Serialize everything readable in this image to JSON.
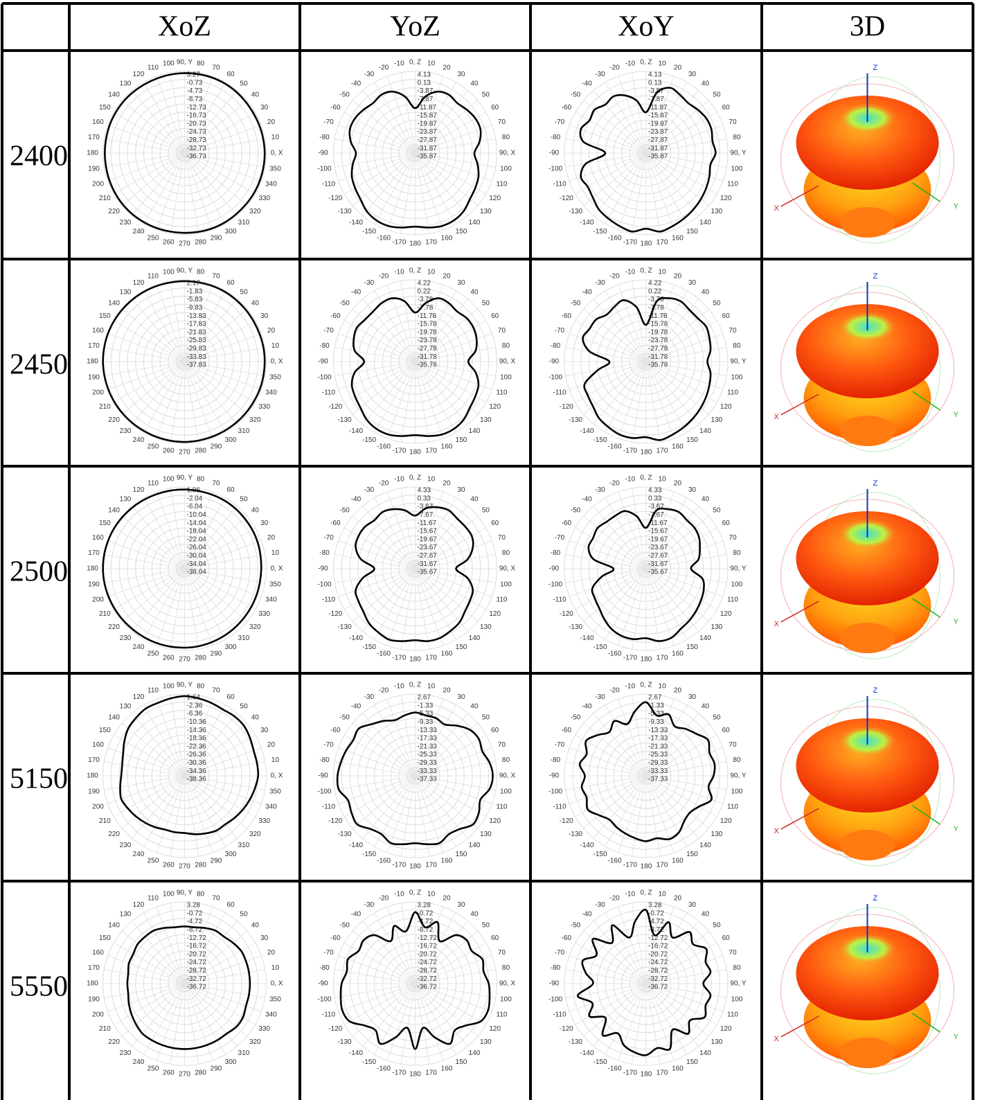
{
  "table": {
    "columns": [
      {
        "title": "XoZ",
        "zero": "right",
        "direction": "ccw",
        "angle_labels": [
          "0, X",
          10,
          20,
          30,
          40,
          50,
          60,
          70,
          80,
          "90, Y",
          100,
          110,
          120,
          130,
          140,
          150,
          160,
          170,
          180,
          190,
          200,
          210,
          220,
          230,
          240,
          250,
          260,
          270,
          280,
          290,
          300,
          310,
          320,
          330,
          340,
          350
        ]
      },
      {
        "title": "YoZ",
        "zero": "top",
        "direction": "cw",
        "angle_labels": [
          "0, Z",
          10,
          20,
          30,
          40,
          50,
          60,
          70,
          80,
          "90, X",
          100,
          110,
          120,
          130,
          140,
          150,
          160,
          170,
          180,
          -170,
          -160,
          -150,
          -140,
          -130,
          -120,
          -110,
          -100,
          -90,
          -80,
          -70,
          -60,
          -50,
          -40,
          -30,
          -20,
          -10
        ]
      },
      {
        "title": "XoY",
        "zero": "top",
        "direction": "cw",
        "angle_labels": [
          "0, Z",
          10,
          20,
          30,
          40,
          50,
          60,
          70,
          80,
          "90, Y",
          100,
          110,
          120,
          130,
          140,
          150,
          160,
          170,
          180,
          -170,
          -160,
          -150,
          -140,
          -130,
          -120,
          -110,
          -100,
          -90,
          -80,
          -70,
          -60,
          -50,
          -40,
          -30,
          -20,
          -10
        ]
      },
      {
        "title": "3D"
      }
    ],
    "axis_labels": {
      "z": "Z",
      "x": "X",
      "y": "Y"
    },
    "rows": [
      {
        "label": "2400",
        "plots": [
          {
            "rticks": [
              3.27,
              -0.73,
              -4.73,
              -8.73,
              -12.73,
              -16.73,
              -20.73,
              -24.73,
              -28.73,
              -32.73,
              -36.73
            ],
            "gain": [
              2.5,
              2.4,
              2.3,
              2.2,
              2.3,
              2.5,
              2.6,
              2.6,
              2.5,
              2.4,
              2.3,
              2.2,
              2.2,
              2.3,
              2.4,
              2.4,
              2.4,
              2.3,
              2.3,
              2.3,
              2.4,
              2.5,
              2.6,
              2.6,
              2.5,
              2.4,
              2.3,
              2.3,
              2.4,
              2.5,
              2.5,
              2.4,
              2.4,
              2.5,
              2.5,
              2.5
            ]
          },
          {
            "rticks": [
              4.13,
              0.13,
              -3.87,
              -7.87,
              -11.87,
              -15.87,
              -19.87,
              -23.87,
              -27.87,
              -31.87,
              -35.87
            ],
            "gain": [
              -13.87,
              -7.87,
              -3.87,
              -2.87,
              -3.87,
              -2.87,
              -1.87,
              -1.87,
              -3.87,
              -6.87,
              -4.87,
              -2.87,
              -1.87,
              -0.87,
              1.13,
              2.13,
              2.13,
              1.13,
              0.13,
              1.13,
              2.13,
              2.13,
              1.13,
              -0.87,
              -1.87,
              -2.87,
              -4.87,
              -6.87,
              -3.87,
              -1.87,
              -1.87,
              -2.87,
              -3.87,
              -2.87,
              -3.87,
              -7.87
            ]
          },
          {
            "rticks": [
              4.13,
              0.13,
              -3.87,
              -7.87,
              -11.87,
              -15.87,
              -19.87,
              -23.87,
              -27.87,
              -31.87,
              -35.87
            ],
            "gain": [
              -15.87,
              -5.87,
              -1.87,
              -2.87,
              -3.87,
              -2.87,
              -1.87,
              -1.87,
              -2.87,
              -1.87,
              -3.87,
              -2.87,
              -1.87,
              -0.87,
              0.13,
              1.13,
              2.13,
              3.13,
              1.13,
              3.13,
              2.13,
              1.13,
              0.13,
              -1.87,
              -2.87,
              -1.87,
              -5.87,
              -15.87,
              -4.87,
              -1.87,
              -3.87,
              -2.87,
              -4.87,
              -3.87,
              -5.87,
              -9.87
            ]
          }
        ]
      },
      {
        "label": "2450",
        "plots": [
          {
            "rticks": [
              2.17,
              -1.83,
              -5.83,
              -9.83,
              -13.83,
              -17.83,
              -21.83,
              -25.83,
              -29.83,
              -33.83,
              -37.83
            ],
            "gain": [
              1.4,
              1.4,
              1.3,
              1.3,
              1.4,
              1.5,
              1.6,
              1.6,
              1.5,
              1.5,
              1.5,
              1.6,
              1.7,
              1.8,
              1.9,
              2.0,
              2.1,
              2.1,
              2.1,
              2.0,
              1.9,
              1.8,
              1.7,
              1.6,
              1.5,
              1.5,
              1.5,
              1.5,
              1.4,
              1.3,
              1.3,
              1.3,
              1.3,
              1.3,
              1.4,
              1.4
            ]
          },
          {
            "rticks": [
              4.22,
              0.22,
              -3.78,
              -7.78,
              -11.78,
              -15.78,
              -19.78,
              -23.78,
              -27.78,
              -31.78,
              -35.78
            ],
            "gain": [
              -11.78,
              -6.78,
              -2.78,
              -2.78,
              -3.78,
              -2.78,
              -2.78,
              -3.78,
              -5.78,
              -9.78,
              -5.78,
              -2.78,
              -1.78,
              -0.78,
              1.22,
              2.22,
              2.22,
              1.22,
              0.22,
              1.22,
              2.22,
              2.22,
              1.22,
              -0.78,
              -1.78,
              -2.78,
              -5.78,
              -10.78,
              -5.78,
              -3.78,
              -2.78,
              -3.78,
              -3.78,
              -2.78,
              -2.78,
              -5.78
            ]
          },
          {
            "rticks": [
              4.22,
              0.22,
              -3.78,
              -7.78,
              -11.78,
              -15.78,
              -19.78,
              -23.78,
              -27.78,
              -31.78,
              -35.78
            ],
            "gain": [
              -17.78,
              -5.78,
              -2.78,
              -1.78,
              -2.78,
              -2.78,
              -1.78,
              -2.78,
              -3.78,
              -5.78,
              -3.78,
              -2.78,
              -1.78,
              -0.78,
              0.22,
              1.22,
              2.22,
              3.22,
              1.22,
              2.22,
              2.22,
              1.22,
              0.22,
              -1.78,
              -2.78,
              -3.78,
              -11.78,
              -17.78,
              -7.78,
              -2.78,
              -3.78,
              -3.78,
              -5.78,
              -4.78,
              -3.78,
              -8.78
            ]
          }
        ]
      },
      {
        "label": "2500",
        "plots": [
          {
            "rticks": [
              1.96,
              -2.04,
              -6.04,
              -10.04,
              -14.04,
              -18.04,
              -22.04,
              -26.04,
              -30.04,
              -34.04,
              -38.04
            ],
            "gain": [
              -0.5,
              -0.3,
              0,
              0.2,
              0.3,
              0.5,
              0.6,
              0.6,
              0.6,
              0.7,
              0.8,
              0.9,
              1.1,
              1.3,
              1.5,
              1.7,
              1.8,
              1.9,
              1.9,
              1.8,
              1.6,
              1.4,
              1.2,
              1.0,
              0.9,
              0.8,
              0.7,
              0.6,
              0.5,
              0.3,
              0.1,
              -0.1,
              -0.3,
              -0.4,
              -0.5,
              -0.6
            ]
          },
          {
            "rticks": [
              4.33,
              0.33,
              -3.67,
              -7.67,
              -11.67,
              -15.67,
              -19.67,
              -23.67,
              -27.67,
              -31.67,
              -35.67
            ],
            "gain": [
              -9.67,
              -5.67,
              -3.67,
              -2.67,
              -3.67,
              -3.67,
              -3.67,
              -5.67,
              -9.67,
              -15.67,
              -9.67,
              -5.67,
              -4.67,
              -3.67,
              -1.67,
              -0.67,
              0.33,
              0.33,
              -0.67,
              0.33,
              1.33,
              0.33,
              -0.67,
              -2.67,
              -3.67,
              -4.67,
              -9.67,
              -15.67,
              -8.67,
              -4.67,
              -3.67,
              -3.67,
              -4.67,
              -3.67,
              -4.67,
              -6.67
            ]
          },
          {
            "rticks": [
              4.33,
              0.33,
              -3.67,
              -7.67,
              -11.67,
              -15.67,
              -19.67,
              -23.67,
              -27.67,
              -31.67,
              -35.67
            ],
            "gain": [
              -15.67,
              -6.67,
              -4.67,
              -3.67,
              -4.67,
              -4.67,
              -5.67,
              -7.67,
              -9.67,
              -13.67,
              -7.67,
              -5.67,
              -4.67,
              -3.67,
              -2.67,
              -1.67,
              0.33,
              0.33,
              -1.67,
              -0.67,
              -0.67,
              -1.67,
              -3.67,
              -5.67,
              -6.67,
              -7.67,
              -13.67,
              -19.67,
              -9.67,
              -5.67,
              -5.67,
              -4.67,
              -5.67,
              -5.67,
              -5.67,
              -9.67
            ]
          }
        ]
      },
      {
        "label": "5150",
        "plots": [
          {
            "rticks": [
              1.64,
              -2.36,
              -6.36,
              -10.36,
              -14.36,
              -18.36,
              -22.36,
              -26.36,
              -30.36,
              -34.36,
              -38.36
            ],
            "gain": [
              -2.36,
              -2.36,
              -2.36,
              -1.36,
              -0.36,
              -0.36,
              -0.86,
              -0.36,
              0.14,
              0.64,
              0.14,
              -0.36,
              -0.36,
              -1.36,
              -2.36,
              -4.36,
              -6.36,
              -7.36,
              -7.36,
              -6.36,
              -5.36,
              -6.36,
              -7.36,
              -8.36,
              -9.36,
              -10.36,
              -10.36,
              -10.36,
              -9.36,
              -8.36,
              -7.36,
              -7.36,
              -6.36,
              -5.36,
              -4.36,
              -3.36
            ]
          },
          {
            "rticks": [
              2.67,
              -1.33,
              -5.33,
              -9.33,
              -13.33,
              -17.33,
              -21.33,
              -25.33,
              -29.33,
              -33.33,
              -37.33
            ],
            "gain": [
              -6.33,
              -7.33,
              -7.33,
              -8.33,
              -5.33,
              -2.33,
              -1.33,
              -2.33,
              -0.33,
              0.67,
              -0.33,
              -3.33,
              -1.33,
              -0.33,
              -3.33,
              -4.33,
              -2.33,
              -3.33,
              -4.33,
              -3.33,
              -2.33,
              -4.33,
              -3.33,
              -0.33,
              -1.33,
              -2.33,
              0.67,
              0.67,
              -0.33,
              -1.33,
              -2.33,
              -1.33,
              -4.33,
              -6.33,
              -8.33,
              -7.33
            ]
          },
          {
            "rticks": [
              2.67,
              -1.33,
              -5.33,
              -9.33,
              -13.33,
              -17.33,
              -21.33,
              -25.33,
              -29.33,
              -33.33,
              -37.33
            ],
            "gain": [
              -1.33,
              -7.33,
              -5.33,
              -9.33,
              -7.33,
              -5.33,
              -2.33,
              -4.33,
              -3.33,
              -4.33,
              -6.33,
              -3.33,
              -7.33,
              -9.33,
              -8.33,
              -5.33,
              -4.33,
              -6.33,
              -5.33,
              -6.33,
              -7.33,
              -8.33,
              -9.33,
              -7.33,
              -4.33,
              -6.33,
              -5.33,
              -7.33,
              -4.33,
              -6.33,
              -3.33,
              -6.33,
              -9.33,
              -6.33,
              -10.33,
              -5.33
            ]
          }
        ]
      },
      {
        "label": "5550",
        "plots": [
          {
            "rticks": [
              3.28,
              -0.72,
              -4.72,
              -8.72,
              -12.72,
              -16.72,
              -20.72,
              -24.72,
              -28.72,
              -32.72,
              -36.72
            ],
            "gain": [
              -4.72,
              -4.72,
              -4.72,
              -4.72,
              -5.72,
              -6.72,
              -6.72,
              -7.72,
              -8.72,
              -8.72,
              -8.72,
              -7.72,
              -6.72,
              -6.72,
              -6.72,
              -7.72,
              -7.72,
              -8.72,
              -8.72,
              -8.72,
              -7.72,
              -6.72,
              -5.72,
              -4.72,
              -4.72,
              -4.72,
              -4.72,
              -4.72,
              -4.72,
              -4.72,
              -4.72,
              -4.72,
              -3.72,
              -3.72,
              -4.72,
              -4.72
            ]
          },
          {
            "rticks": [
              3.28,
              -0.72,
              -4.72,
              -8.72,
              -12.72,
              -16.72,
              -20.72,
              -24.72,
              -28.72,
              -32.72,
              -36.72
            ],
            "gain": [
              -1.72,
              -8.72,
              -4.72,
              -12.72,
              -5.72,
              -3.72,
              -4.72,
              -1.72,
              -2.72,
              -0.72,
              0.28,
              1.28,
              0.28,
              -4.72,
              -6.72,
              -2.72,
              -8.72,
              -14.72,
              -4.72,
              -14.72,
              -8.72,
              -2.72,
              -6.72,
              -4.72,
              0.28,
              1.28,
              0.28,
              -0.72,
              -2.72,
              -1.72,
              -4.72,
              -3.72,
              -5.72,
              -12.72,
              -6.72,
              -10.72
            ]
          },
          {
            "rticks": [
              3.28,
              -0.72,
              -4.72,
              -8.72,
              -12.72,
              -16.72,
              -20.72,
              -24.72,
              -28.72,
              -32.72,
              -36.72
            ],
            "gain": [
              -0.72,
              -12.72,
              -4.72,
              -10.72,
              -3.72,
              -6.72,
              -2.72,
              -5.72,
              -4.72,
              -8.72,
              -4.72,
              -5.72,
              -3.72,
              -8.72,
              -4.72,
              -10.72,
              -2.72,
              -4.72,
              -1.72,
              -2.72,
              -4.72,
              -8.72,
              -3.72,
              -10.72,
              -4.72,
              -8.72,
              -2.72,
              -10.72,
              -6.72,
              -3.72,
              -8.72,
              -2.72,
              -10.72,
              -3.72,
              -12.72,
              -5.72
            ]
          }
        ]
      }
    ]
  }
}
